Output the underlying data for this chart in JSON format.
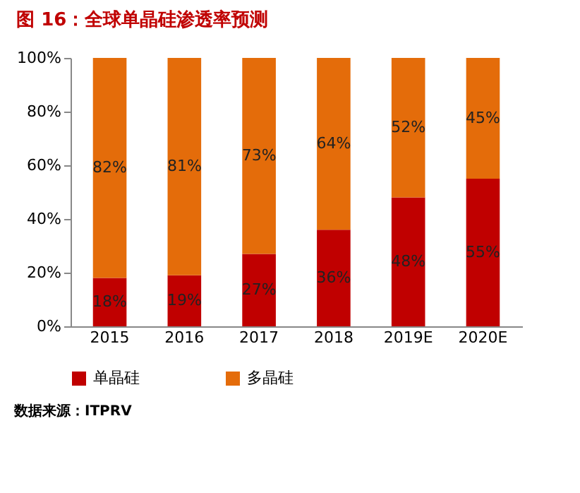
{
  "chart_data": {
    "type": "bar",
    "stacked": true,
    "title": "图 16：全球单晶硅渗透率预测",
    "categories": [
      "2015",
      "2016",
      "2017",
      "2018",
      "2019E",
      "2020E"
    ],
    "series": [
      {
        "name": "单晶硅",
        "color": "#c00000",
        "values": [
          18,
          19,
          27,
          36,
          48,
          55
        ],
        "value_labels": [
          "18%",
          "19%",
          "27%",
          "36%",
          "48%",
          "55%"
        ]
      },
      {
        "name": "多晶硅",
        "color": "#e46c0a",
        "values": [
          82,
          81,
          73,
          64,
          52,
          45
        ],
        "value_labels": [
          "82%",
          "81%",
          "73%",
          "64%",
          "52%",
          "45%"
        ]
      }
    ],
    "ylim": [
      0,
      100
    ],
    "yticks": [
      {
        "value": 0,
        "label": "0%"
      },
      {
        "value": 20,
        "label": "20%"
      },
      {
        "value": 40,
        "label": "40%"
      },
      {
        "value": 60,
        "label": "60%"
      },
      {
        "value": 80,
        "label": "80%"
      },
      {
        "value": 100,
        "label": "100%"
      }
    ],
    "grid": false,
    "legend": "bottom",
    "annotations": [
      "数据来源：ITPRV"
    ]
  }
}
